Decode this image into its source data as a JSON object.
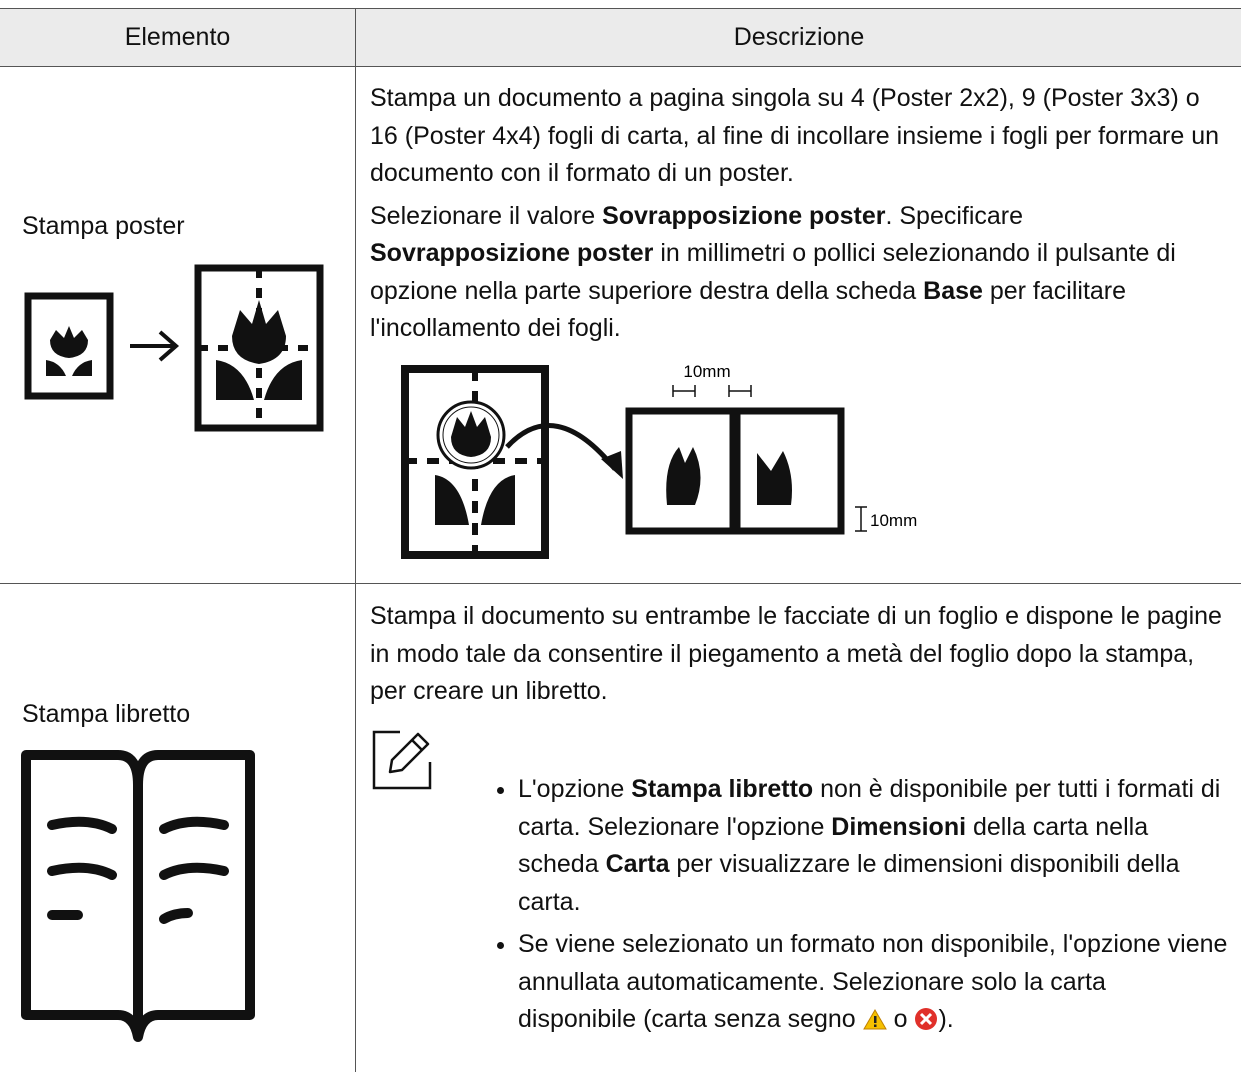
{
  "header": {
    "col1": "Elemento",
    "col2": "Descrizione"
  },
  "rows": [
    {
      "item": "Stampa poster",
      "description": [
        [
          {
            "text": "Stampa un documento a pagina singola su 4 (Poster 2x2), 9 (Poster 3x3) o 16 (Poster 4x4) fogli di carta, al fine di incollare insieme i fogli per formare un documento con il formato di un poster."
          }
        ],
        [
          {
            "text": "Selezionare il valore "
          },
          {
            "text": "Sovrapposizione poster",
            "bold": true
          },
          {
            "text": ". Specificare "
          },
          {
            "text": "Sovrapposizione poster",
            "bold": true
          },
          {
            "text": " in millimetri o pollici selezionando il pulsante di opzione nella parte superiore destra della scheda "
          },
          {
            "text": "Base",
            "bold": true
          },
          {
            "text": " per facilitare l'incollamento dei fogli."
          }
        ]
      ],
      "diagram": {
        "top_label": "10mm",
        "side_label": "10mm"
      }
    },
    {
      "item": "Stampa libretto",
      "description": [
        [
          {
            "text": "Stampa il documento su entrambe le facciate di un foglio e dispone le pagine in modo tale da consentire il piegamento a metà del foglio dopo la stampa, per creare un libretto."
          }
        ]
      ],
      "notes": [
        [
          {
            "text": "L'opzione "
          },
          {
            "text": "Stampa libretto",
            "bold": true
          },
          {
            "text": " non è disponibile per tutti i formati di carta. Selezionare l'opzione "
          },
          {
            "text": "Dimensioni",
            "bold": true
          },
          {
            "text": " della carta nella scheda "
          },
          {
            "text": "Carta",
            "bold": true
          },
          {
            "text": " per visualizzare le dimensioni disponibili della carta."
          }
        ],
        [
          {
            "text": "Se viene selezionato un formato non disponibile, l'opzione viene annullata automaticamente. Selezionare solo la carta disponibile (carta senza segno "
          },
          {
            "text": " o "
          },
          {
            "text": ")."
          }
        ]
      ]
    }
  ]
}
